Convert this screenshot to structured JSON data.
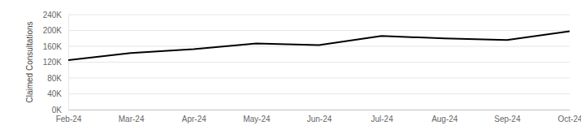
{
  "chart_data": {
    "type": "line",
    "y_label": "Claimed Consultations",
    "categories": [
      "Feb-24",
      "Mar-24",
      "Apr-24",
      "May-24",
      "Jun-24",
      "Jul-24",
      "Aug-24",
      "Sep-24",
      "Oct-24"
    ],
    "values": [
      125000,
      143000,
      153000,
      167000,
      163000,
      186000,
      180000,
      176000,
      198000
    ],
    "color": "#000000",
    "ylim": [
      0,
      240000
    ],
    "yticks": [
      {
        "value": 0,
        "label": "0K"
      },
      {
        "value": 40000,
        "label": "40K"
      },
      {
        "value": 80000,
        "label": "80K"
      },
      {
        "value": 120000,
        "label": "120K"
      },
      {
        "value": 160000,
        "label": "160K"
      },
      {
        "value": 200000,
        "label": "200K"
      },
      {
        "value": 240000,
        "label": "240K"
      }
    ],
    "grid": true
  }
}
